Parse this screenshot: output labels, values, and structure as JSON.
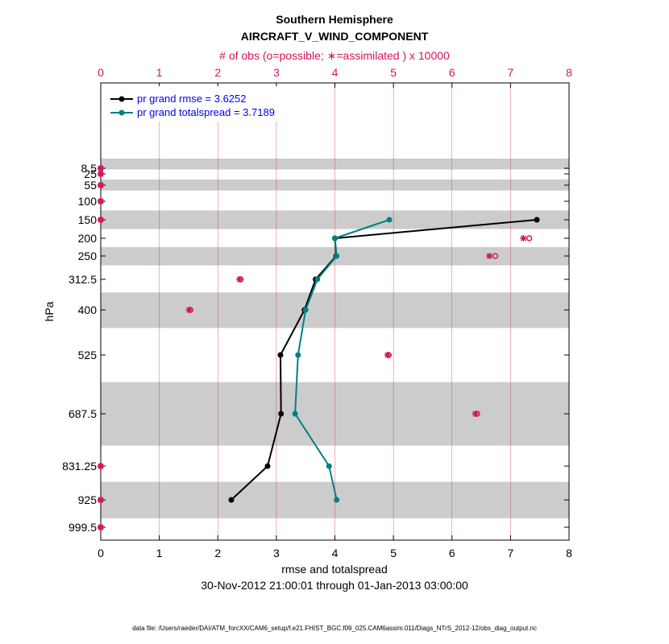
{
  "chart_data": {
    "type": "line",
    "title": "Southern Hemisphere",
    "subtitle": "AIRCRAFT_V_WIND_COMPONENT",
    "top_axis_label": "# of obs (o=possible; ∗=assimilated ) x 10000",
    "xlabel": "rmse and totalspread",
    "ylabel": "hPa",
    "date_range": "30-Nov-2012 21:00:01 through 01-Jan-2013 03:00:00",
    "footer": "data file: /Users/raeder/DAI/ATM_forcXX/CAM6_setup/f.e21.FHIST_BGC.f09_025.CAM6assim.011/Diags_NTrS_2012-12/obs_diag_output.nc",
    "xlim": [
      0,
      8
    ],
    "x_ticks": [
      "0",
      "1",
      "2",
      "3",
      "4",
      "5",
      "6",
      "7",
      "8"
    ],
    "top_xlim": [
      0,
      8
    ],
    "top_ticks": [
      "0",
      "1",
      "2",
      "3",
      "4",
      "5",
      "6",
      "7",
      "8"
    ],
    "y_scale": "pressure (inverted)",
    "y_ticks": [
      "8.5",
      "25",
      "55",
      "100",
      "150",
      "200",
      "250",
      "312.5",
      "400",
      "525",
      "687.5",
      "831.25",
      "925",
      "999.5"
    ],
    "grid": "vertical lines at x ticks",
    "shaded_bands_hPa": [
      [
        0,
        12
      ],
      [
        40,
        70
      ],
      [
        125,
        175
      ],
      [
        225,
        275
      ],
      [
        350,
        450
      ],
      [
        600,
        775
      ],
      [
        875,
        975
      ]
    ],
    "legend_placement": "top-left",
    "series": [
      {
        "name": "pr grand rmse = 3.6252",
        "color": "#000000",
        "points": [
          {
            "level": "150",
            "x": 7.45
          },
          {
            "level": "200",
            "x": 4.0
          },
          {
            "level": "250",
            "x": 4.02
          },
          {
            "level": "312.5",
            "x": 3.67
          },
          {
            "level": "400",
            "x": 3.48
          },
          {
            "level": "525",
            "x": 3.07
          },
          {
            "level": "687.5",
            "x": 3.08
          },
          {
            "level": "831.25",
            "x": 2.85
          },
          {
            "level": "925",
            "x": 2.23
          }
        ]
      },
      {
        "name": "pr grand totalspread = 3.7189",
        "color": "#008080",
        "points": [
          {
            "level": "150",
            "x": 4.93
          },
          {
            "level": "200",
            "x": 4.0
          },
          {
            "level": "250",
            "x": 4.03
          },
          {
            "level": "312.5",
            "x": 3.7
          },
          {
            "level": "400",
            "x": 3.5
          },
          {
            "level": "525",
            "x": 3.37
          },
          {
            "level": "687.5",
            "x": 3.32
          },
          {
            "level": "831.25",
            "x": 3.9
          },
          {
            "level": "925",
            "x": 4.03
          }
        ]
      }
    ],
    "obs_counts": {
      "color": "#d4145a",
      "points": [
        {
          "level": "8.5",
          "possible": 0.0,
          "assimilated": 0.0
        },
        {
          "level": "25",
          "possible": 0.0,
          "assimilated": 0.0
        },
        {
          "level": "55",
          "possible": 0.0,
          "assimilated": 0.0
        },
        {
          "level": "100",
          "possible": 0.0,
          "assimilated": 0.0
        },
        {
          "level": "150",
          "possible": 0.0,
          "assimilated": 0.0
        },
        {
          "level": "200",
          "possible": 7.32,
          "assimilated": 7.22
        },
        {
          "level": "250",
          "possible": 6.74,
          "assimilated": 6.64
        },
        {
          "level": "312.5",
          "possible": 2.39,
          "assimilated": 2.37
        },
        {
          "level": "400",
          "possible": 1.53,
          "assimilated": 1.51
        },
        {
          "level": "525",
          "possible": 4.92,
          "assimilated": 4.9
        },
        {
          "level": "687.5",
          "possible": 6.43,
          "assimilated": 6.4
        },
        {
          "level": "831.25",
          "possible": 0.0,
          "assimilated": 0.0
        },
        {
          "level": "925",
          "possible": 0.0,
          "assimilated": 0.0
        },
        {
          "level": "999.5",
          "possible": 0.0,
          "assimilated": 0.0
        }
      ]
    }
  }
}
